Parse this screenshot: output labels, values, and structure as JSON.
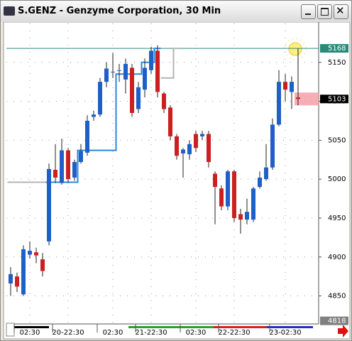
{
  "window": {
    "title": "S.GENZ - Genzyme Corporation, 30 Min"
  },
  "chart_data": {
    "type": "candlestick",
    "categories": [
      null,
      null,
      null,
      "02:30",
      null,
      null,
      null,
      null,
      null,
      "20-22:30",
      null,
      null,
      null,
      null,
      null,
      null,
      "02:30",
      null,
      null,
      null,
      null,
      null,
      "21-22:30",
      null,
      null,
      null,
      null,
      null,
      null,
      "02:30",
      null,
      null,
      null,
      null,
      null,
      "22-22:30",
      null,
      null,
      null,
      null,
      null,
      null,
      null,
      "23-02:30",
      null,
      null
    ],
    "open": [
      4866,
      4875,
      4852,
      4903,
      4906,
      4897,
      4920,
      5012,
      4995,
      5037,
      5002,
      5022,
      5034,
      5080,
      5083,
      5125,
      5138,
      5140,
      5128,
      5143,
      5090,
      5115,
      5140,
      5165,
      5110,
      5092,
      5055,
      5033,
      5032,
      5058,
      5055,
      5058,
      5007,
      4988,
      4965,
      5010,
      4955,
      4948,
      4948,
      4990,
      5000,
      5015,
      5070,
      5125,
      5112,
      5105
    ],
    "high": [
      4887,
      4880,
      4915,
      4920,
      4912,
      4905,
      5020,
      5045,
      5052,
      5040,
      5025,
      5045,
      5082,
      5088,
      5130,
      5150,
      5162,
      5148,
      5155,
      5148,
      5125,
      5155,
      5170,
      5172,
      5112,
      5095,
      5058,
      5040,
      5050,
      5062,
      5062,
      5062,
      5010,
      4992,
      5012,
      5012,
      4962,
      4975,
      4990,
      5010,
      5045,
      5078,
      5140,
      5135,
      5132,
      5168
    ],
    "low": [
      4850,
      4855,
      4850,
      4898,
      4892,
      4875,
      4915,
      4995,
      4993,
      4995,
      4998,
      5020,
      5030,
      5075,
      5080,
      5118,
      5130,
      5125,
      5110,
      5080,
      5085,
      5105,
      5135,
      5105,
      5085,
      5050,
      5025,
      5002,
      5025,
      5035,
      5050,
      5015,
      4942,
      4960,
      4960,
      4945,
      4930,
      4942,
      4945,
      4988,
      4998,
      5012,
      5068,
      5100,
      5090,
      5095
    ],
    "close": [
      4878,
      4862,
      4910,
      4908,
      4902,
      4882,
      5013,
      5002,
      5037,
      5000,
      5022,
      5036,
      5075,
      5083,
      5125,
      5142,
      5138,
      5140,
      5148,
      5085,
      5118,
      5143,
      5165,
      5112,
      5090,
      5055,
      5030,
      5038,
      5045,
      5040,
      5058,
      5022,
      4990,
      4965,
      5010,
      4950,
      4948,
      4958,
      4988,
      5002,
      5015,
      5070,
      5125,
      5115,
      5125,
      5103
    ],
    "up_color": "#1f5fc8",
    "down_color": "#cc2020",
    "lines": [
      {
        "color": "#2a86e0",
        "values": [
          null,
          null,
          null,
          null,
          null,
          4996,
          4996,
          4996,
          4996,
          4996,
          4996,
          5037,
          5037,
          5037,
          5037,
          5037,
          5037,
          5135,
          5135,
          5135,
          5135,
          5150,
          5150,
          5168,
          null,
          null,
          null,
          null,
          null,
          null,
          null,
          null,
          null,
          null,
          null,
          null,
          null,
          null,
          null,
          null,
          null,
          null,
          null,
          null,
          null,
          null
        ]
      },
      {
        "color": "#b4b4b4",
        "values": [
          4996,
          4996,
          4996,
          4996,
          4996,
          4996,
          null,
          null,
          null,
          null,
          null,
          null,
          null,
          null,
          null,
          null,
          null,
          null,
          null,
          null,
          null,
          null,
          null,
          null,
          5130,
          5130,
          5168,
          null,
          null,
          null,
          null,
          null,
          null,
          null,
          null,
          null,
          null,
          null,
          null,
          null,
          null,
          null,
          null,
          null,
          null,
          null
        ]
      }
    ],
    "levels": [
      {
        "value": 5168,
        "color": "#2a8a7a"
      },
      {
        "value": 5103,
        "color": "#000000"
      },
      {
        "value": 4818,
        "color": "#808080"
      }
    ],
    "ylim": [
      4814,
      5200
    ],
    "yticks": [
      4850,
      4900,
      4950,
      5000,
      5050,
      5100,
      5150
    ],
    "grid": true
  }
}
